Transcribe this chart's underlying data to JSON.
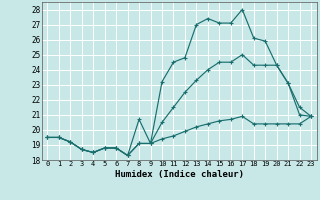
{
  "title": "",
  "xlabel": "Humidex (Indice chaleur)",
  "bg_color": "#c8e8e8",
  "line_color": "#1a6e6e",
  "grid_color": "#ffffff",
  "xlim": [
    -0.5,
    23.5
  ],
  "ylim": [
    18,
    28.5
  ],
  "yticks": [
    18,
    19,
    20,
    21,
    22,
    23,
    24,
    25,
    26,
    27,
    28
  ],
  "xticks": [
    0,
    1,
    2,
    3,
    4,
    5,
    6,
    7,
    8,
    9,
    10,
    11,
    12,
    13,
    14,
    15,
    16,
    17,
    18,
    19,
    20,
    21,
    22,
    23
  ],
  "line1_x": [
    0,
    1,
    2,
    3,
    4,
    5,
    6,
    7,
    8,
    9,
    10,
    11,
    12,
    13,
    14,
    15,
    16,
    17,
    18,
    19,
    20,
    21,
    22,
    23
  ],
  "line1_y": [
    19.5,
    19.5,
    19.2,
    18.7,
    18.5,
    18.8,
    18.8,
    18.3,
    20.7,
    19.1,
    23.2,
    24.5,
    24.8,
    27.0,
    27.4,
    27.1,
    27.1,
    28.0,
    26.1,
    25.9,
    24.3,
    23.1,
    21.0,
    20.9
  ],
  "line2_x": [
    0,
    1,
    2,
    3,
    4,
    5,
    6,
    7,
    8,
    9,
    10,
    11,
    12,
    13,
    14,
    15,
    16,
    17,
    18,
    19,
    20,
    21,
    22,
    23
  ],
  "line2_y": [
    19.5,
    19.5,
    19.2,
    18.7,
    18.5,
    18.8,
    18.8,
    18.3,
    19.1,
    19.1,
    20.5,
    21.5,
    22.5,
    23.3,
    24.0,
    24.5,
    24.5,
    25.0,
    24.3,
    24.3,
    24.3,
    23.1,
    21.5,
    20.9
  ],
  "line3_x": [
    0,
    1,
    2,
    3,
    4,
    5,
    6,
    7,
    8,
    9,
    10,
    11,
    12,
    13,
    14,
    15,
    16,
    17,
    18,
    19,
    20,
    21,
    22,
    23
  ],
  "line3_y": [
    19.5,
    19.5,
    19.2,
    18.7,
    18.5,
    18.8,
    18.8,
    18.3,
    19.1,
    19.1,
    19.4,
    19.6,
    19.9,
    20.2,
    20.4,
    20.6,
    20.7,
    20.9,
    20.4,
    20.4,
    20.4,
    20.4,
    20.4,
    20.9
  ]
}
